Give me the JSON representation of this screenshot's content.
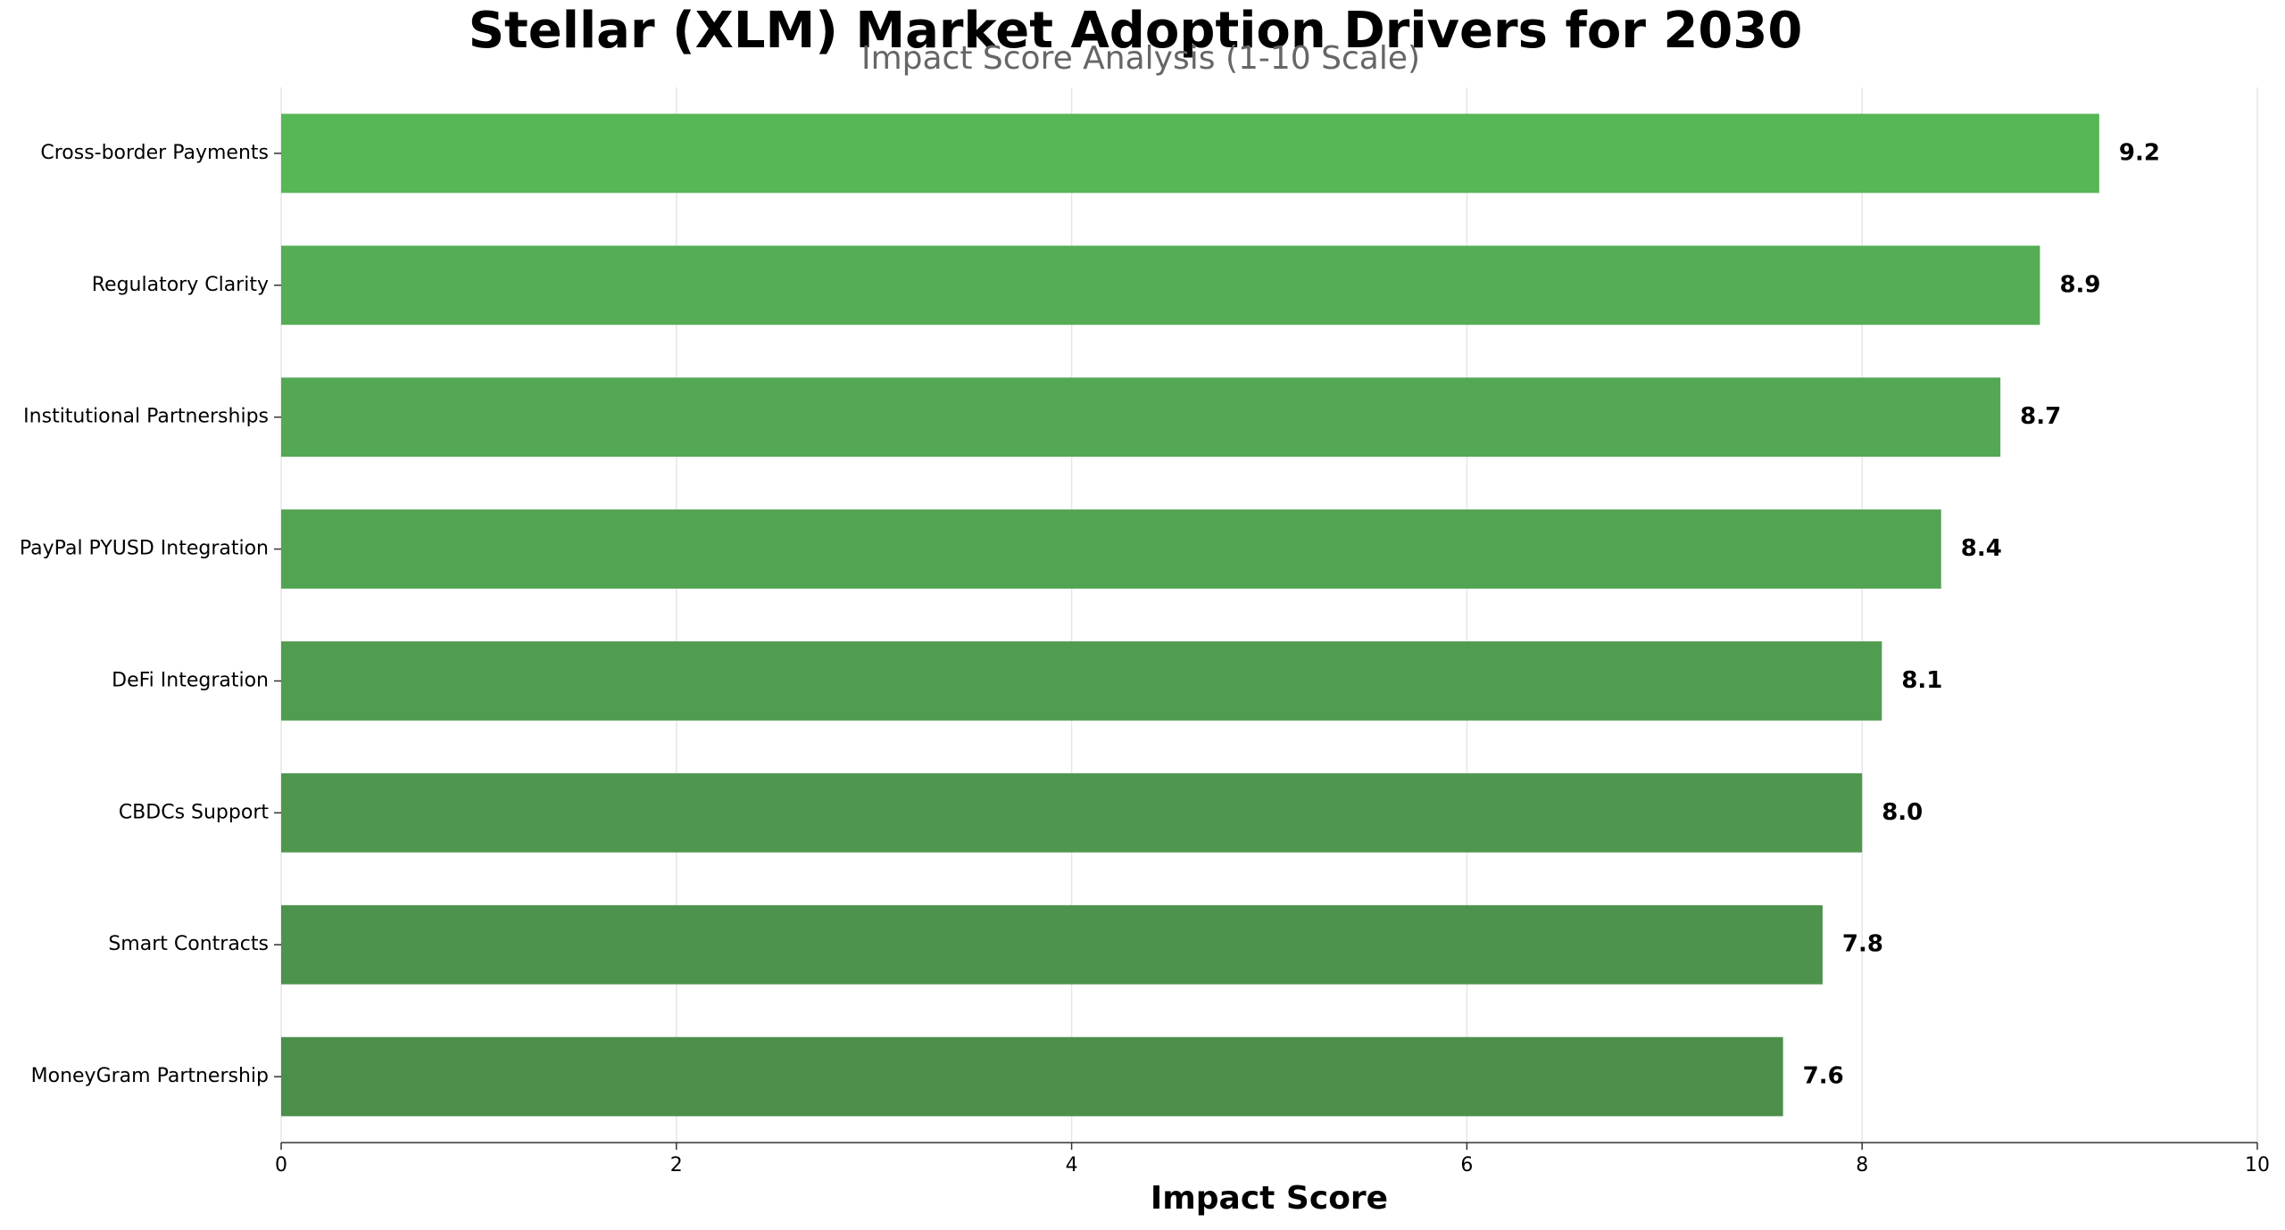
{
  "chart_data": {
    "type": "bar",
    "orientation": "horizontal",
    "title": "Stellar (XLM) Market Adoption Drivers for 2030",
    "subtitle": "Impact Score Analysis (1-10 Scale)",
    "x_label": "Impact Score",
    "categories": [
      "Cross-border Payments",
      "Regulatory Clarity",
      "Institutional Partnerships",
      "PayPal PYUSD Integration",
      "DeFi Integration",
      "CBDCs Support",
      "Smart Contracts",
      "MoneyGram Partnership"
    ],
    "values": [
      9.2,
      8.9,
      8.7,
      8.4,
      8.1,
      8.0,
      7.8,
      7.6
    ],
    "value_labels": [
      "9.2",
      "8.9",
      "8.7",
      "8.4",
      "8.1",
      "8.0",
      "7.8",
      "7.6"
    ],
    "colors": [
      "#57b656",
      "#55ad55",
      "#54a853",
      "#52a352",
      "#509c50",
      "#4f974e",
      "#4d924d",
      "#4c8f4b"
    ],
    "xlim": [
      0,
      10
    ],
    "xticks": [
      0,
      2,
      4,
      6,
      8,
      10
    ],
    "grid": true
  }
}
